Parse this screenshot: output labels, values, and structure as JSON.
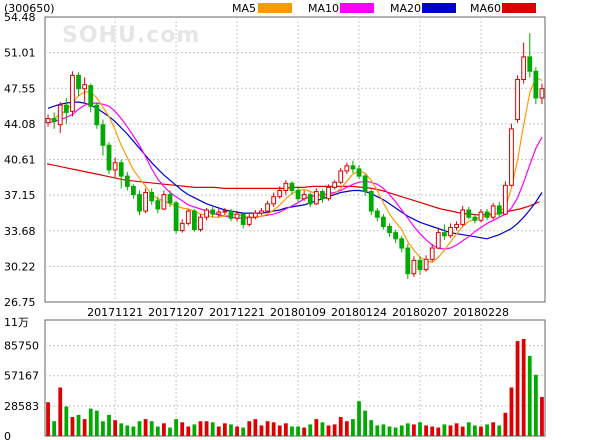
{
  "header": {
    "code": "(300650)",
    "watermark": "SOHU.com",
    "legend": [
      {
        "label": "MA5",
        "color": "#ff9900"
      },
      {
        "label": "MA10",
        "color": "#ff00ff"
      },
      {
        "label": "MA20",
        "color": "#0000cc"
      },
      {
        "label": "MA60",
        "color": "#dd0000"
      }
    ]
  },
  "colors": {
    "up": "#dd0000",
    "down": "#00aa00",
    "grid": "#c8c8c8",
    "frame": "#666666"
  },
  "chart_data": [
    {
      "type": "candlestick",
      "title": "",
      "ylim": [
        26.75,
        54.48
      ],
      "y_ticks": [
        "54.48",
        "51.01",
        "47.55",
        "44.08",
        "40.61",
        "37.15",
        "33.68",
        "30.22",
        "26.75"
      ],
      "x_ticks": [
        "20171121",
        "20171207",
        "20171221",
        "20180109",
        "20180124",
        "20180207",
        "20180228"
      ],
      "x_tick_index": [
        11,
        21,
        31,
        41,
        51,
        61,
        71
      ],
      "candles": [
        [
          44.2,
          44.6,
          45.0,
          43.8
        ],
        [
          44.6,
          44.3,
          45.2,
          43.6
        ],
        [
          44.0,
          45.9,
          46.2,
          43.2
        ],
        [
          45.9,
          45.2,
          46.6,
          44.1
        ],
        [
          45.3,
          48.8,
          49.2,
          44.8
        ],
        [
          48.8,
          47.5,
          49.1,
          46.8
        ],
        [
          47.5,
          47.9,
          48.6,
          46.2
        ],
        [
          47.8,
          45.8,
          48.0,
          45.2
        ],
        [
          45.9,
          44.0,
          46.2,
          43.6
        ],
        [
          44.0,
          42.0,
          44.5,
          41.0
        ],
        [
          42.0,
          39.6,
          42.3,
          39.2
        ],
        [
          39.6,
          40.3,
          40.8,
          38.9
        ],
        [
          40.3,
          39.0,
          40.6,
          37.8
        ],
        [
          39.0,
          38.0,
          39.4,
          37.6
        ],
        [
          38.0,
          37.2,
          38.2,
          36.8
        ],
        [
          37.2,
          35.6,
          37.6,
          35.2
        ],
        [
          35.6,
          37.4,
          37.8,
          35.4
        ],
        [
          37.4,
          36.6,
          37.8,
          36.2
        ],
        [
          36.6,
          35.8,
          37.0,
          35.4
        ],
        [
          35.8,
          37.2,
          37.6,
          35.7
        ],
        [
          37.2,
          36.4,
          37.6,
          36.0
        ],
        [
          36.4,
          33.7,
          36.6,
          33.4
        ],
        [
          33.7,
          34.4,
          34.8,
          33.5
        ],
        [
          34.4,
          35.6,
          35.8,
          34.2
        ],
        [
          35.6,
          33.8,
          35.8,
          33.6
        ],
        [
          33.8,
          35.0,
          35.3,
          33.6
        ],
        [
          35.0,
          35.7,
          35.9,
          34.7
        ],
        [
          35.7,
          35.3,
          36.0,
          35.0
        ],
        [
          35.3,
          35.5,
          35.8,
          35.0
        ],
        [
          35.5,
          35.6,
          35.9,
          35.2
        ],
        [
          35.6,
          34.9,
          35.8,
          34.6
        ],
        [
          34.9,
          35.3,
          35.6,
          34.6
        ],
        [
          35.3,
          34.3,
          35.4,
          33.9
        ],
        [
          34.3,
          35.0,
          35.3,
          34.1
        ],
        [
          35.0,
          35.4,
          35.7,
          34.8
        ],
        [
          35.4,
          35.6,
          35.9,
          35.2
        ],
        [
          35.6,
          36.3,
          36.6,
          35.4
        ],
        [
          36.3,
          37.0,
          37.4,
          36.0
        ],
        [
          37.0,
          37.6,
          38.0,
          36.8
        ],
        [
          37.6,
          38.3,
          38.6,
          37.2
        ],
        [
          38.3,
          37.6,
          38.5,
          37.2
        ],
        [
          37.6,
          36.8,
          37.9,
          36.5
        ],
        [
          36.8,
          37.2,
          37.6,
          36.6
        ],
        [
          37.2,
          36.3,
          37.4,
          36.0
        ],
        [
          36.3,
          37.5,
          37.8,
          36.2
        ],
        [
          37.5,
          36.8,
          37.7,
          36.4
        ],
        [
          36.8,
          37.9,
          38.2,
          36.6
        ],
        [
          37.9,
          38.4,
          38.6,
          37.7
        ],
        [
          38.4,
          39.5,
          39.8,
          38.2
        ],
        [
          39.5,
          40.0,
          40.3,
          39.2
        ],
        [
          40.0,
          39.7,
          40.5,
          39.3
        ],
        [
          39.7,
          39.0,
          40.1,
          38.7
        ],
        [
          39.0,
          37.5,
          39.2,
          37.1
        ],
        [
          37.5,
          35.6,
          37.7,
          35.2
        ],
        [
          35.6,
          35.0,
          35.9,
          34.6
        ],
        [
          35.0,
          34.1,
          35.3,
          33.8
        ],
        [
          34.1,
          33.5,
          34.4,
          33.1
        ],
        [
          33.5,
          32.9,
          33.8,
          32.5
        ],
        [
          32.9,
          32.0,
          33.2,
          31.6
        ],
        [
          32.0,
          29.5,
          32.4,
          29.0
        ],
        [
          29.5,
          30.8,
          31.2,
          29.2
        ],
        [
          30.8,
          29.9,
          31.2,
          29.4
        ],
        [
          29.9,
          30.9,
          31.3,
          29.7
        ],
        [
          30.9,
          32.0,
          32.4,
          30.7
        ],
        [
          32.0,
          33.5,
          33.9,
          31.9
        ],
        [
          33.5,
          33.2,
          34.3,
          32.8
        ],
        [
          33.2,
          34.0,
          34.4,
          33.0
        ],
        [
          34.0,
          34.3,
          34.6,
          33.7
        ],
        [
          34.3,
          35.7,
          36.1,
          34.1
        ],
        [
          35.7,
          35.0,
          36.0,
          34.8
        ],
        [
          35.0,
          34.7,
          35.3,
          34.4
        ],
        [
          34.7,
          35.5,
          35.8,
          34.5
        ],
        [
          35.5,
          35.0,
          35.8,
          34.7
        ],
        [
          35.0,
          36.1,
          36.4,
          34.8
        ],
        [
          36.1,
          35.3,
          36.5,
          35.0
        ],
        [
          35.3,
          38.1,
          38.5,
          35.2
        ],
        [
          38.1,
          43.6,
          44.1,
          38.0
        ],
        [
          44.5,
          48.4,
          48.8,
          44.2
        ],
        [
          48.4,
          50.6,
          52.0,
          48.0
        ],
        [
          50.6,
          49.2,
          52.9,
          48.6
        ],
        [
          49.2,
          46.6,
          49.6,
          46.0
        ],
        [
          46.6,
          47.5,
          48.0,
          46.0
        ]
      ],
      "volume_ylim": [
        0,
        110000
      ],
      "volume_ticks": [
        "85750",
        "57167",
        "28583",
        "0"
      ],
      "volume_unit": "11万",
      "volumes": [
        32000,
        14000,
        46000,
        28000,
        18000,
        20000,
        16000,
        26000,
        24000,
        14000,
        20000,
        15000,
        12000,
        10000,
        9000,
        14000,
        16000,
        14000,
        9000,
        12000,
        8000,
        16000,
        13000,
        9000,
        11000,
        14000,
        14000,
        13000,
        9000,
        12000,
        11000,
        9000,
        8000,
        14000,
        16000,
        10000,
        14000,
        13000,
        10000,
        12000,
        9000,
        9000,
        8000,
        11000,
        16000,
        13000,
        10000,
        11000,
        18000,
        14000,
        16000,
        33000,
        24000,
        15000,
        10000,
        11000,
        9000,
        8000,
        10000,
        12000,
        11000,
        13000,
        10000,
        9000,
        8000,
        11000,
        10000,
        12000,
        9000,
        13000,
        10000,
        9000,
        11000,
        13000,
        10000,
        22000,
        46000,
        90000,
        92000,
        76000,
        58000,
        37000
      ],
      "ma5": [
        44.4,
        44.6,
        45.0,
        45.4,
        46.1,
        46.8,
        47.2,
        47.2,
        46.6,
        45.7,
        44.8,
        43.5,
        42.0,
        40.8,
        39.6,
        38.8,
        38.0,
        37.2,
        36.8,
        36.6,
        36.3,
        36.1,
        35.9,
        35.8,
        35.6,
        35.3,
        35.2,
        35.0,
        35.0,
        35.1,
        35.3,
        35.3,
        35.1,
        35.0,
        35.0,
        35.1,
        35.3,
        35.7,
        36.2,
        36.8,
        37.3,
        37.6,
        37.7,
        37.5,
        37.3,
        37.1,
        37.2,
        37.3,
        37.8,
        38.5,
        39.2,
        39.5,
        39.3,
        38.6,
        37.6,
        36.4,
        35.3,
        34.5,
        33.8,
        32.6,
        31.8,
        31.1,
        30.8,
        30.6,
        31.1,
        31.8,
        32.6,
        33.4,
        34.1,
        34.6,
        34.8,
        35.0,
        35.1,
        35.2,
        35.5,
        36.0,
        37.8,
        40.6,
        44.0,
        47.1,
        48.6,
        48.3
      ],
      "ma10": [
        44.2,
        44.3,
        44.5,
        44.7,
        45.0,
        45.5,
        45.9,
        46.1,
        46.1,
        46.0,
        45.8,
        45.3,
        44.6,
        43.8,
        42.9,
        42.0,
        40.9,
        39.7,
        38.7,
        38.0,
        37.4,
        37.0,
        36.6,
        36.2,
        36.0,
        35.8,
        35.6,
        35.4,
        35.2,
        35.1,
        35.0,
        34.9,
        34.9,
        34.9,
        35.0,
        35.1,
        35.2,
        35.3,
        35.5,
        35.8,
        36.1,
        36.4,
        36.8,
        37.0,
        37.1,
        37.2,
        37.3,
        37.4,
        37.6,
        37.9,
        38.2,
        38.4,
        38.5,
        38.4,
        38.2,
        37.8,
        37.2,
        36.5,
        35.7,
        34.9,
        34.1,
        33.4,
        32.8,
        32.3,
        32.0,
        31.9,
        32.0,
        32.3,
        32.7,
        33.1,
        33.6,
        34.0,
        34.4,
        34.7,
        35.0,
        35.3,
        35.9,
        36.9,
        38.4,
        40.1,
        41.7,
        42.8
      ],
      "ma20": [
        45.6,
        45.8,
        46.0,
        46.1,
        46.2,
        46.2,
        46.1,
        45.9,
        45.6,
        45.2,
        44.8,
        44.3,
        43.7,
        43.1,
        42.4,
        41.7,
        41.0,
        40.3,
        39.7,
        39.1,
        38.6,
        38.1,
        37.6,
        37.2,
        36.9,
        36.6,
        36.3,
        36.1,
        35.9,
        35.7,
        35.6,
        35.5,
        35.4,
        35.4,
        35.4,
        35.4,
        35.5,
        35.6,
        35.7,
        35.9,
        36.0,
        36.1,
        36.2,
        36.4,
        36.6,
        36.8,
        37.0,
        37.2,
        37.4,
        37.5,
        37.6,
        37.6,
        37.5,
        37.3,
        37.0,
        36.7,
        36.3,
        35.9,
        35.5,
        35.1,
        34.8,
        34.5,
        34.3,
        34.1,
        33.9,
        33.7,
        33.5,
        33.4,
        33.3,
        33.2,
        33.1,
        33.0,
        32.9,
        33.1,
        33.3,
        33.6,
        33.9,
        34.4,
        35.0,
        35.7,
        36.5,
        37.4
      ],
      "ma60": [
        null,
        null,
        null,
        null,
        null,
        null,
        null,
        null,
        null,
        null,
        null,
        null,
        null,
        null,
        null,
        null,
        null,
        null,
        null,
        null,
        null,
        null,
        null,
        null,
        null,
        null,
        null,
        null,
        null,
        null,
        null,
        null,
        null,
        null,
        null,
        null,
        null,
        null,
        null,
        null,
        null,
        null,
        null,
        null,
        null,
        null,
        null,
        null,
        null,
        null,
        null,
        null,
        null,
        null,
        null,
        null,
        null,
        null,
        null,
        null,
        null,
        null,
        null,
        null,
        null,
        null,
        null,
        null,
        null,
        null,
        null,
        null,
        null,
        null,
        null,
        null,
        null,
        null,
        null,
        null,
        null,
        null
      ],
      "ma60_line": [
        40.2,
        40.0,
        39.8,
        39.6,
        39.4,
        39.2,
        39.0,
        38.8,
        38.6,
        38.5,
        38.4,
        38.3,
        38.2,
        38.1,
        38.0,
        37.9,
        37.9,
        37.9,
        37.8,
        37.8,
        37.8,
        37.8,
        37.8,
        37.8,
        37.8,
        37.9,
        37.9,
        38.0,
        38.0,
        38.0,
        38.0,
        38.0,
        37.9,
        37.8,
        37.6,
        37.3,
        37.0,
        36.7,
        36.4,
        36.1,
        35.8,
        35.6,
        35.4,
        35.3,
        35.2,
        35.3,
        35.4,
        35.6,
        35.8,
        36.1,
        36.5
      ]
    }
  ]
}
